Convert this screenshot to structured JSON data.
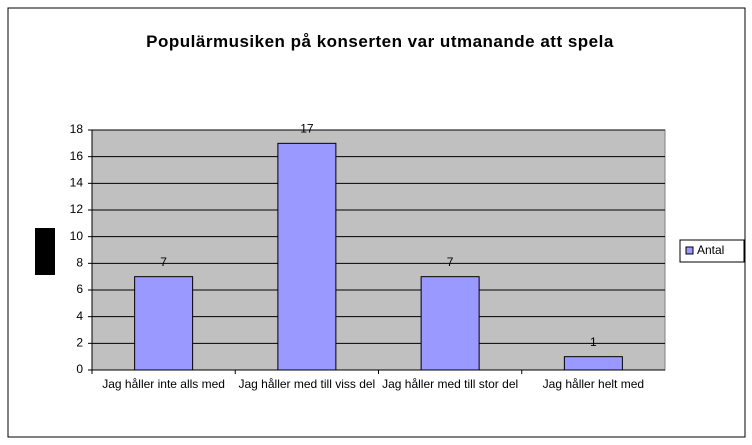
{
  "chart_data": {
    "type": "bar",
    "title": "Populärmusiken på konserten var utmanande att spela",
    "categories": [
      "Jag håller inte alls med",
      "Jag håller med till viss del",
      "Jag håller med till stor del",
      "Jag håller helt med"
    ],
    "series": [
      {
        "name": "Antal",
        "color": "#9999ff",
        "values": [
          7,
          17,
          7,
          1
        ]
      }
    ],
    "ylim": [
      0,
      18
    ],
    "yticks": [
      0,
      2,
      4,
      6,
      8,
      10,
      12,
      14,
      16,
      18
    ],
    "grid": true,
    "legend": "right",
    "plot_background": "#c0c0c0"
  }
}
